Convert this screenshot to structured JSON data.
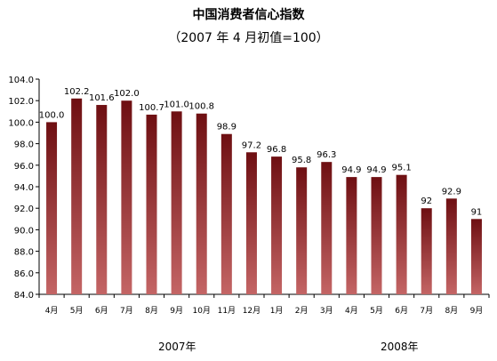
{
  "chart_data": {
    "type": "bar",
    "title": "中国消费者信心指数",
    "subtitle": "（2007 年 4 月初值=100）",
    "categories": [
      "4月",
      "5月",
      "6月",
      "7月",
      "8月",
      "9月",
      "10月",
      "11月",
      "12月",
      "1月",
      "2月",
      "3月",
      "4月",
      "5月",
      "6月",
      "7月",
      "8月",
      "9月"
    ],
    "values": [
      100.0,
      102.2,
      101.6,
      102.0,
      100.7,
      101.0,
      100.8,
      98.9,
      97.2,
      96.8,
      95.8,
      96.3,
      94.9,
      94.9,
      95.1,
      92,
      92.9,
      91
    ],
    "data_labels": [
      "100.0",
      "102.2",
      "101.6",
      "102.0",
      "100.7",
      "101.0",
      "100.8",
      "98.9",
      "97.2",
      "96.8",
      "95.8",
      "96.3",
      "94.9",
      "94.9",
      "95.1",
      "92",
      "92.9",
      "91"
    ],
    "ylim": [
      84.0,
      104.0
    ],
    "yticks": [
      "84.0",
      "86.0",
      "88.0",
      "90.0",
      "92.0",
      "94.0",
      "96.0",
      "98.0",
      "100.0",
      "102.0",
      "104.0"
    ],
    "year_groups": [
      "2007年",
      "2008年"
    ],
    "grid": false,
    "legend": "none",
    "colors": {
      "bar_top": "#6e0f12",
      "bar_bottom": "#c46565"
    }
  }
}
